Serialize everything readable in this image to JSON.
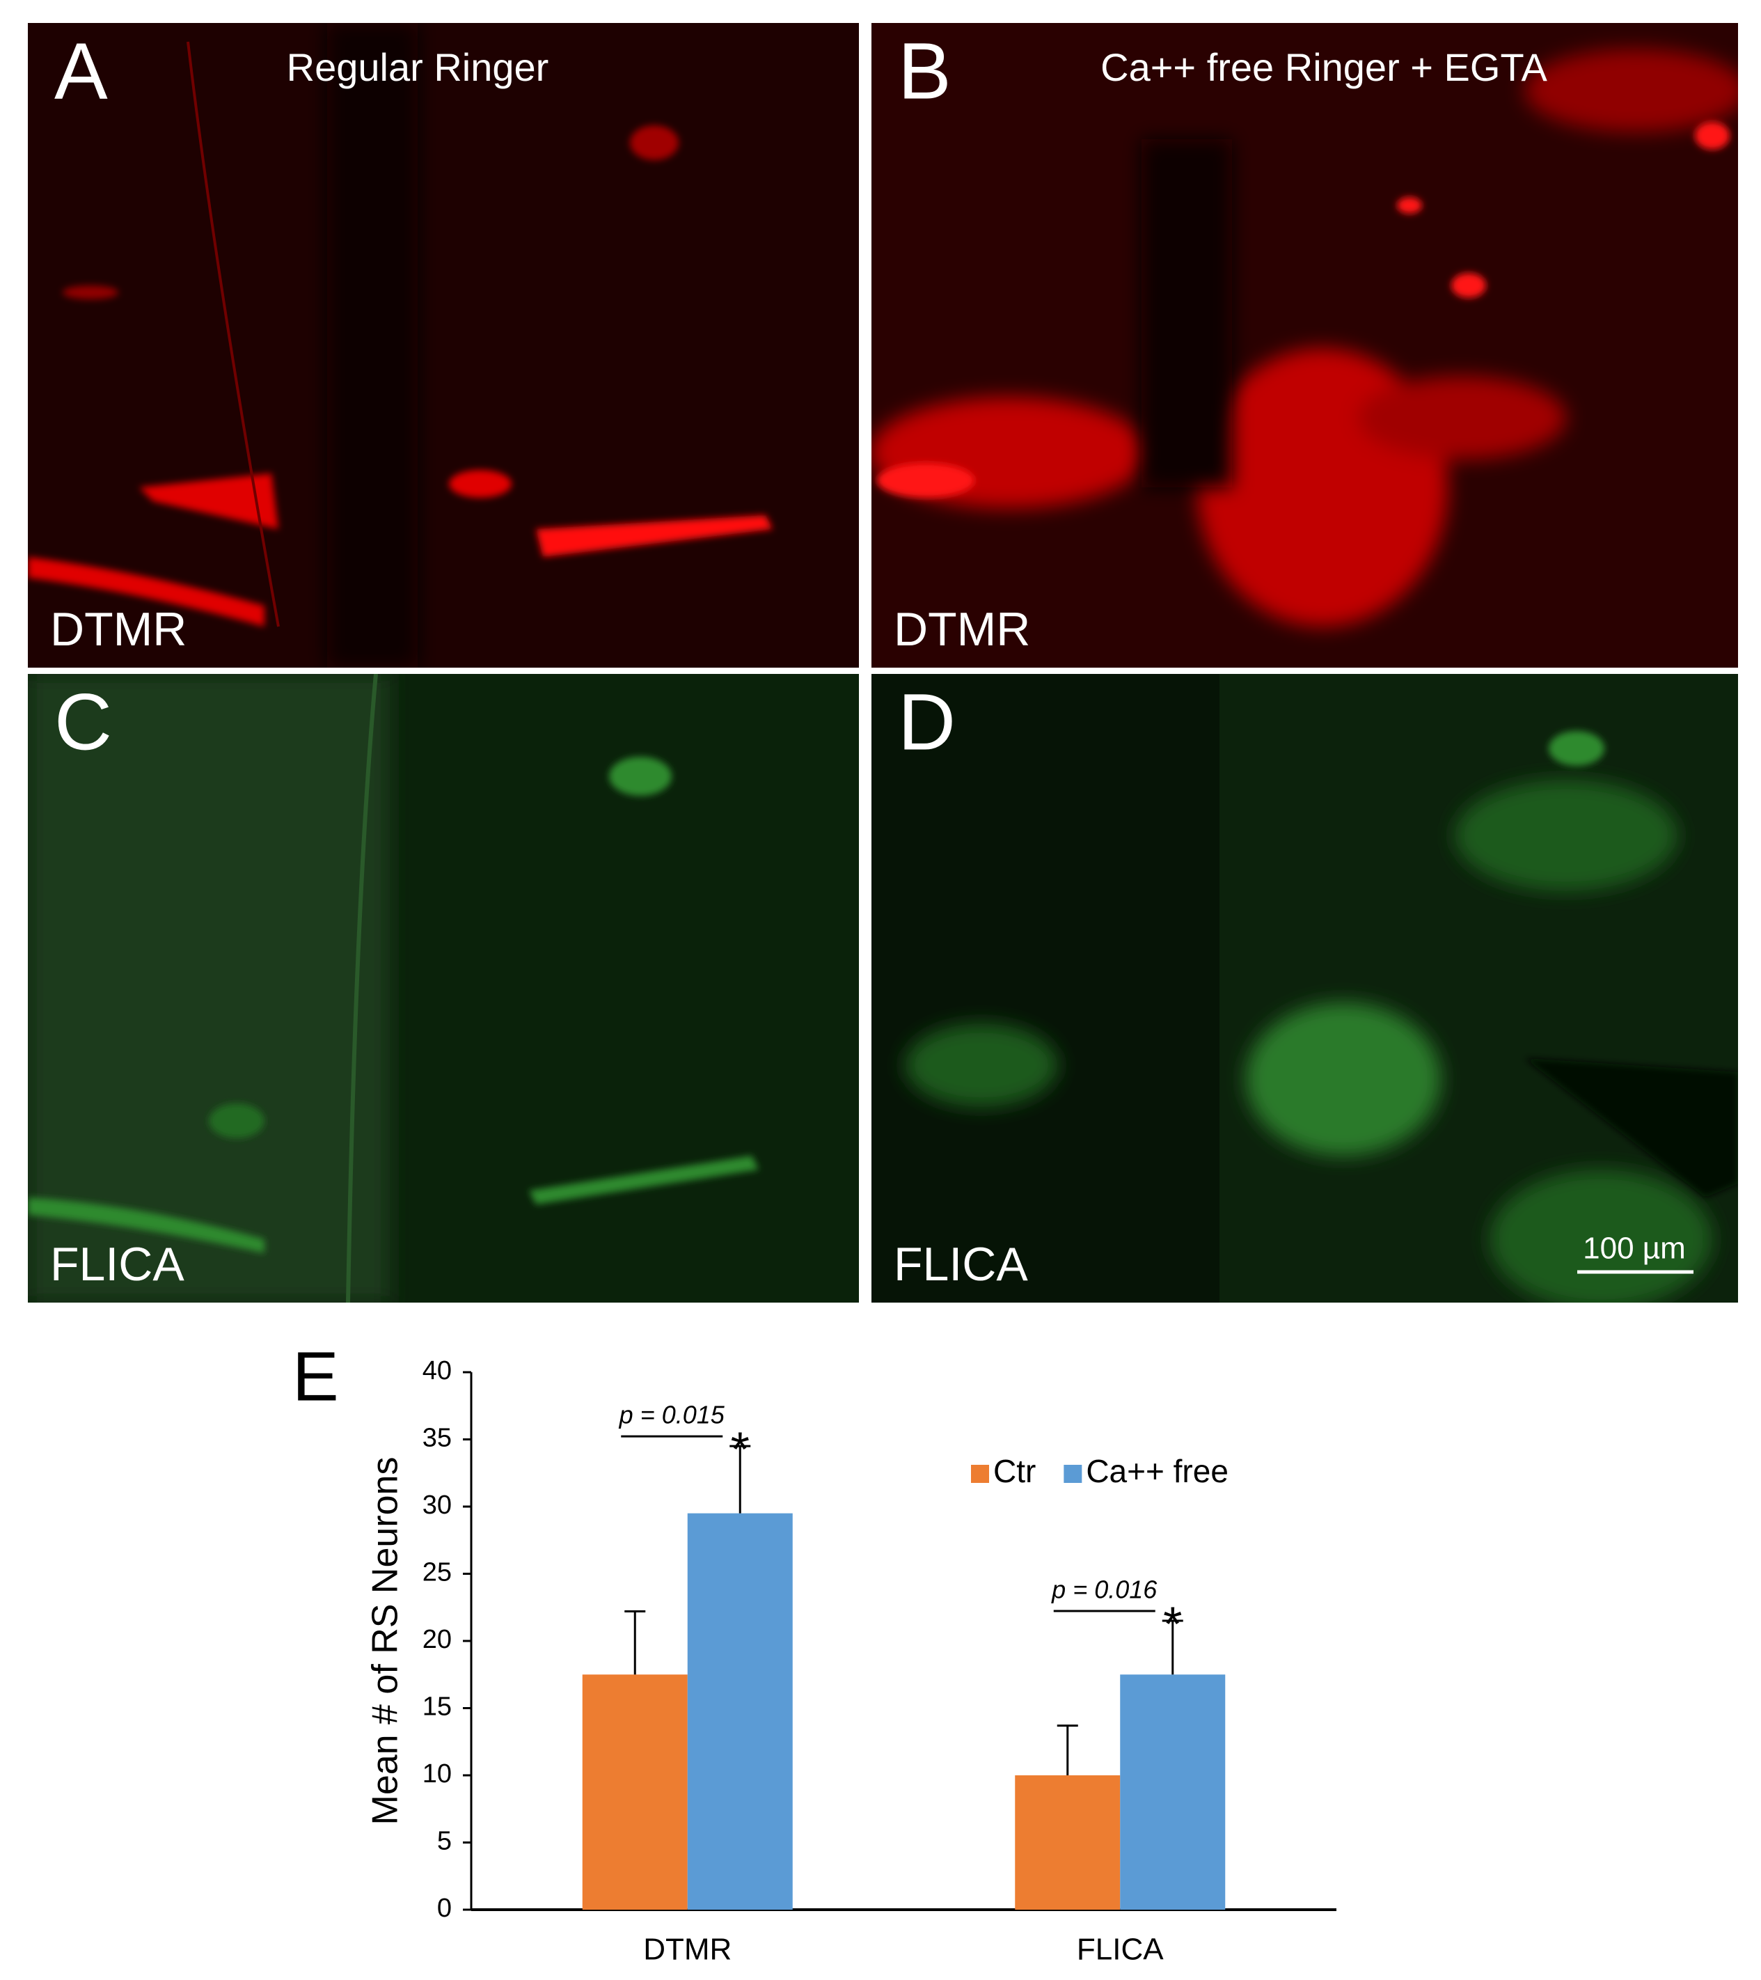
{
  "panels": [
    {
      "letter": "A",
      "title": "Regular Ringer",
      "stain": "DTMR"
    },
    {
      "letter": "B",
      "title": "Ca++ free Ringer + EGTA",
      "stain": "DTMR"
    },
    {
      "letter": "C",
      "stain": "FLICA"
    },
    {
      "letter": "D",
      "stain": "FLICA",
      "scale_bar": "100 µm"
    }
  ],
  "chart_data": {
    "type": "bar",
    "panel_label": "E",
    "y_label": "Mean # of RS Neurons",
    "categories": [
      "DTMR",
      "FLICA"
    ],
    "series": [
      {
        "name": "Ctr",
        "color": "#ed7d31",
        "values": [
          17.5,
          10
        ],
        "errors": [
          4.7,
          3.7
        ]
      },
      {
        "name": "Ca++ free",
        "color": "#5b9bd5",
        "values": [
          29.5,
          17.5
        ],
        "errors": [
          5,
          4
        ]
      }
    ],
    "annotations": [
      {
        "label": "p = 0.015",
        "mark": "*"
      },
      {
        "label": "p = 0.016",
        "mark": "*"
      }
    ],
    "ylim": [
      0,
      40
    ],
    "yticks": [
      0,
      5,
      10,
      15,
      20,
      25,
      30,
      35,
      40
    ]
  }
}
